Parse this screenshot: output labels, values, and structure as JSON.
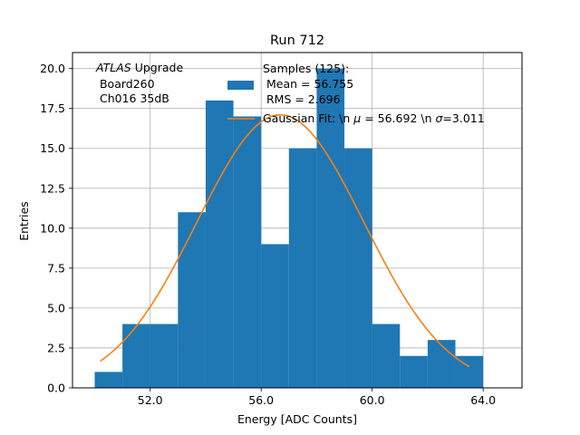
{
  "chart_data": {
    "type": "bar",
    "title": "Run 712",
    "xlabel": "Energy [ADC Counts]",
    "ylabel": "Entries",
    "xlim": [
      49.2,
      65.4
    ],
    "ylim": [
      0,
      21.0
    ],
    "grid": true,
    "xticks": [
      52,
      56,
      60,
      64
    ],
    "xtick_labels": [
      "52.0",
      "56.0",
      "60.0",
      "64.0"
    ],
    "yticks": [
      0,
      2.5,
      5,
      7.5,
      10,
      12.5,
      15,
      17.5,
      20
    ],
    "ytick_labels": [
      "0.0",
      "2.5",
      "5.0",
      "7.5",
      "10.0",
      "12.5",
      "15.0",
      "17.5",
      "20.0"
    ],
    "histogram": {
      "bin_edges": [
        50,
        51,
        52,
        53,
        54,
        55,
        56,
        57,
        58,
        59,
        60,
        61,
        62,
        63,
        64
      ],
      "counts": [
        1,
        4,
        4,
        11,
        18,
        17,
        9,
        15,
        20,
        15,
        4,
        2,
        3,
        2
      ],
      "color": "#1f77b4"
    },
    "fit": {
      "type": "gaussian",
      "mu": 56.692,
      "sigma": 3.011,
      "amplitude": 17.1,
      "x_range": [
        50.2,
        63.5
      ],
      "color": "#ff7f0e"
    },
    "annotation": {
      "emph": "ATLAS",
      "line1_rest": " Upgrade",
      "line2": " Board260",
      "line3": " Ch016 35dB"
    },
    "legend": {
      "location": "upper-center",
      "hist_label_line1": "Samples (125):",
      "hist_label_line2": " Mean = 56.755",
      "hist_label_line3": " RMS = 2.696",
      "fit_label_prefix": "Gaussian Fit: \\n ",
      "fit_label_mu_symbol": "μ",
      "fit_label_mid": " = 56.692 \\n ",
      "fit_label_sigma_symbol": "σ",
      "fit_label_suffix": "=3.011"
    }
  }
}
